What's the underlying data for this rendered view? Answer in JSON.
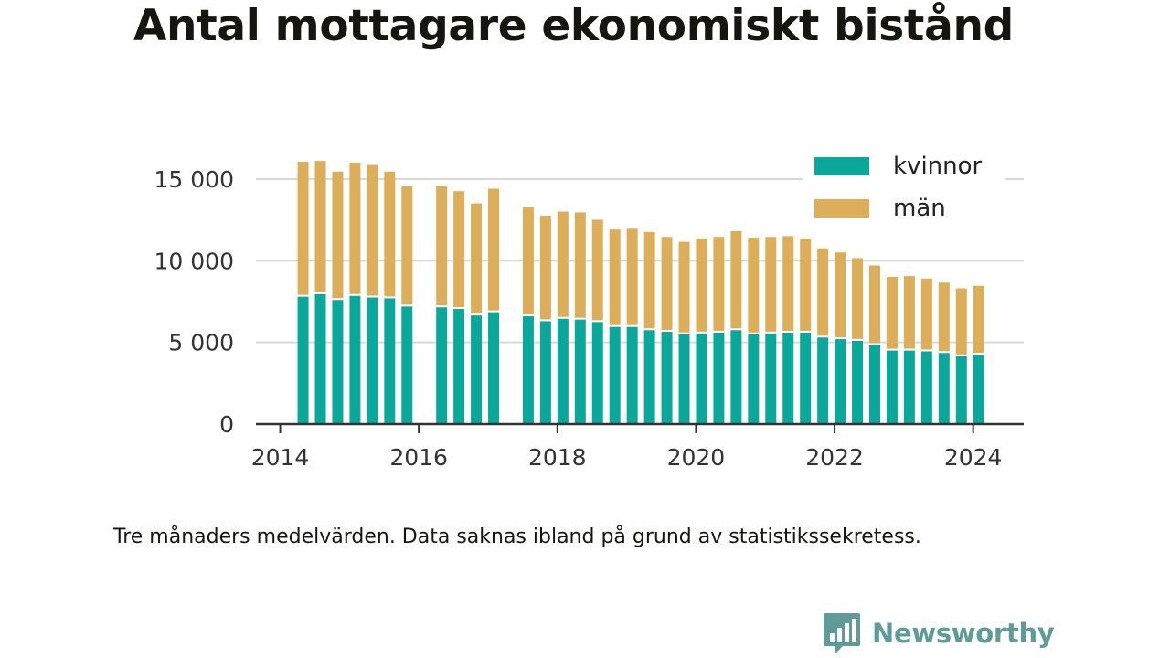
{
  "title": "Antal mottagare ekonomiskt bistånd",
  "caption": "Tre månaders medelvärden. Data saknas ibland på grund av statistikssekretess.",
  "brand": "Newsworthy",
  "colors": {
    "kvinnor": "#0aa89b",
    "man": "#dcae59",
    "text": "#16160f",
    "grid": "#d9d9d9",
    "brand": "#5e9b99"
  },
  "chart_data": {
    "type": "bar",
    "stacked": true,
    "ylim": [
      0,
      17000
    ],
    "yticks": [
      0,
      5000,
      10000,
      15000
    ],
    "ytick_labels": [
      "0",
      "5 000",
      "10 000",
      "15 000"
    ],
    "xticks": [
      2014,
      2016,
      2018,
      2020,
      2022,
      2024
    ],
    "xtick_labels": [
      "2014",
      "2016",
      "2018",
      "2020",
      "2022",
      "2024"
    ],
    "xlim": [
      2013.65,
      2024.73
    ],
    "legend_position": "top-right",
    "x": [
      2014.33,
      2014.58,
      2014.83,
      2015.08,
      2015.33,
      2015.58,
      2015.83,
      2016.33,
      2016.58,
      2016.83,
      2017.08,
      2017.58,
      2017.83,
      2018.08,
      2018.33,
      2018.58,
      2018.83,
      2019.08,
      2019.33,
      2019.58,
      2019.83,
      2020.08,
      2020.33,
      2020.58,
      2020.83,
      2021.08,
      2021.33,
      2021.58,
      2021.83,
      2022.08,
      2022.33,
      2022.58,
      2022.83,
      2023.08,
      2023.33,
      2023.58,
      2023.83,
      2024.08
    ],
    "series": [
      {
        "name": "kvinnor",
        "values": [
          7800,
          7950,
          7600,
          7850,
          7750,
          7700,
          7200,
          7150,
          7050,
          6650,
          6850,
          6600,
          6300,
          6450,
          6400,
          6250,
          5950,
          5950,
          5750,
          5650,
          5500,
          5550,
          5600,
          5750,
          5500,
          5550,
          5600,
          5600,
          5300,
          5200,
          5100,
          4850,
          4500,
          4500,
          4450,
          4350,
          4150,
          4250
        ]
      },
      {
        "name": "män",
        "values": [
          8150,
          8050,
          7750,
          8050,
          8000,
          7650,
          7250,
          7300,
          7100,
          6750,
          7450,
          6550,
          6350,
          6450,
          6450,
          6150,
          5850,
          5900,
          5900,
          5700,
          5550,
          5700,
          5750,
          5950,
          5800,
          5800,
          5800,
          5650,
          5350,
          5200,
          4950,
          4750,
          4400,
          4450,
          4350,
          4200,
          4050,
          4100
        ]
      }
    ]
  }
}
